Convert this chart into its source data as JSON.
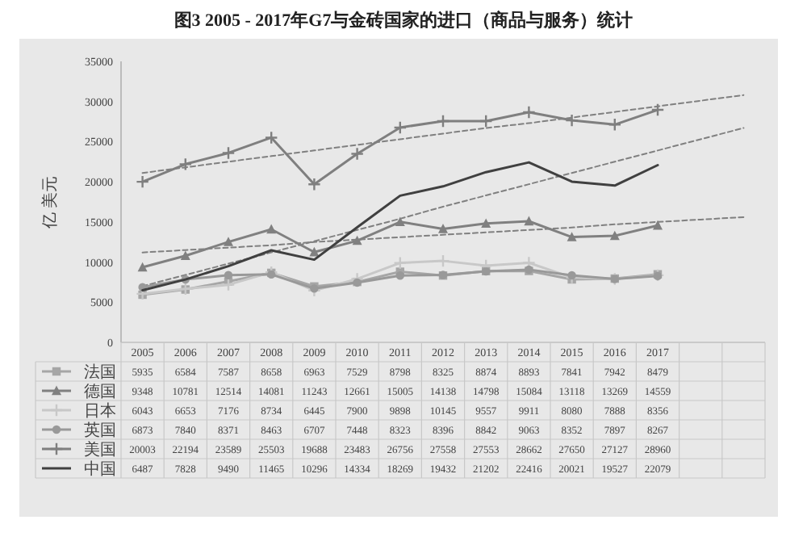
{
  "chart_data": {
    "type": "line",
    "title": "图3 2005 - 2017年G7与金砖国家的进口（商品与服务）统计",
    "ylabel": "亿 美元",
    "categories": [
      "2005",
      "2006",
      "2007",
      "2008",
      "2009",
      "2010",
      "2011",
      "2012",
      "2013",
      "2014",
      "2015",
      "2016",
      "2017",
      null,
      null
    ],
    "ylim": [
      0,
      35000
    ],
    "yticks": [
      0,
      5000,
      10000,
      15000,
      20000,
      25000,
      30000,
      35000
    ],
    "grid": false,
    "legend": "bottom",
    "series": [
      {
        "name": "法国",
        "color": "#a6a6a6",
        "marker": "square",
        "values": [
          5935,
          6584,
          7587,
          8658,
          6963,
          7529,
          8798,
          8325,
          8874,
          8893,
          7841,
          7942,
          8479,
          null,
          null
        ],
        "value_labels": [
          "5935",
          "6584",
          "7587",
          "8658",
          "6963",
          "7529",
          "8798",
          "8325",
          "8874",
          "8893",
          "7841",
          "7942",
          "8479",
          null,
          null
        ]
      },
      {
        "name": "德国",
        "color": "#808080",
        "marker": "triangle",
        "values": [
          9348,
          10781,
          12514,
          14081,
          11243,
          12661,
          15005,
          14138,
          14798,
          15084,
          13118,
          13269,
          14559,
          null,
          null
        ],
        "value_labels": [
          "9348",
          "10781",
          "12514",
          "14081",
          "11243",
          "12661",
          "15005",
          "14138",
          "14798",
          "15084",
          "13118",
          "13269",
          "14559",
          null,
          null
        ]
      },
      {
        "name": "日本",
        "color": "#c8c8c8",
        "marker": "cross",
        "values": [
          6043,
          6653,
          7176,
          8734,
          6445,
          7900,
          9898,
          10145,
          9557,
          9911,
          8080,
          7888,
          8356,
          null,
          null
        ],
        "value_labels": [
          "6043",
          "6653",
          "7176",
          "8734",
          "6445",
          "7900",
          "9898",
          "10145",
          "9557",
          "9911",
          "8080",
          "7888",
          "8356",
          null,
          null
        ]
      },
      {
        "name": "英国",
        "color": "#999999",
        "marker": "circle",
        "values": [
          6873,
          7840,
          8371,
          8463,
          6707,
          7448,
          8323,
          8396,
          8842,
          9063,
          8352,
          7897,
          8267,
          null,
          null
        ],
        "value_labels": [
          "6873",
          "7840",
          "8371",
          "8463",
          "6707",
          "7448",
          "8323",
          "8396",
          "8842",
          "9063",
          "8352",
          "7897",
          "8267",
          null,
          null
        ]
      },
      {
        "name": "美国",
        "color": "#7f7f7f",
        "marker": "cross",
        "values": [
          20003,
          22194,
          23589,
          25503,
          19688,
          23483,
          26756,
          27558,
          27553,
          28662,
          27650,
          27127,
          28960,
          null,
          null
        ],
        "value_labels": [
          "20003",
          "22194",
          "23589",
          "25503",
          "19688",
          "23483",
          "26756",
          "27558",
          "27553",
          "28662",
          "27650",
          "27127",
          "28960",
          null,
          null
        ]
      },
      {
        "name": "中国",
        "color": "#404040",
        "marker": "none",
        "values": [
          6487,
          7828,
          9490,
          11465,
          10296,
          14334,
          18269,
          19432,
          21202,
          22416,
          20021,
          19527,
          22079,
          null,
          null
        ],
        "value_labels": [
          "6487",
          "7828",
          "9490",
          "11465",
          "10296",
          "14334",
          "18269",
          "19432",
          "21202",
          "22416",
          "20021",
          "19527",
          "22079",
          null,
          null
        ]
      },
      {
        "type": "line",
        "color": "#808080",
        "marker": "none",
        "line_style": "dashed",
        "values": [
          21100,
          21800,
          22500,
          23200,
          23900,
          24600,
          25300,
          26000,
          26700,
          27300,
          28000,
          28700,
          29400,
          30100,
          30800
        ]
      },
      {
        "type": "line",
        "color": "#808080",
        "marker": "none",
        "line_style": "dashed",
        "values": [
          7000,
          8400,
          9800,
          11200,
          12600,
          14000,
          15400,
          16900,
          18300,
          19700,
          21100,
          22500,
          23900,
          25300,
          26700
        ]
      },
      {
        "type": "line",
        "color": "#808080",
        "marker": "none",
        "line_style": "dashed",
        "values": [
          11200,
          11500,
          11800,
          12100,
          12500,
          12800,
          13100,
          13400,
          13700,
          14000,
          14300,
          14700,
          15000,
          15300,
          15600
        ]
      }
    ]
  }
}
